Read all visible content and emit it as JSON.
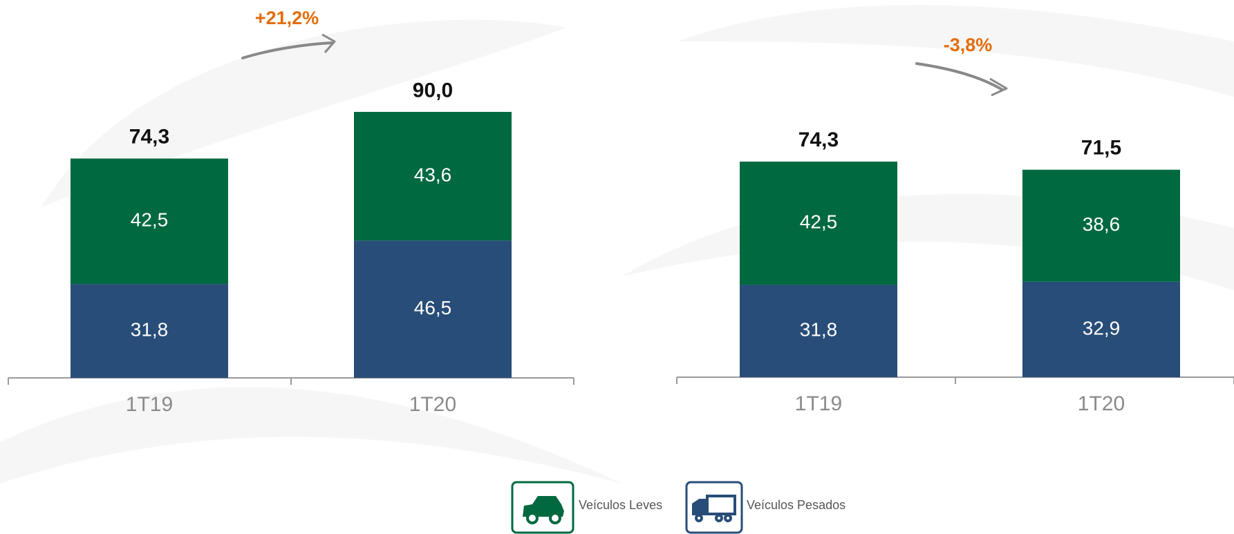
{
  "chart_data": [
    {
      "type": "stacked-bar",
      "annotation": "+21,2%",
      "categories": [
        "1T19",
        "1T20"
      ],
      "series": [
        {
          "name": "Veículos Pesados",
          "color": "#284d78",
          "values": [
            31.8,
            46.5
          ],
          "value_labels": [
            "31,8",
            "46,5"
          ]
        },
        {
          "name": "Veículos Leves",
          "color": "#006940",
          "values": [
            42.5,
            43.6
          ],
          "value_labels": [
            "42,5",
            "43,6"
          ]
        }
      ],
      "totals": [
        74.3,
        90.0
      ],
      "total_labels": [
        "74,3",
        "90,0"
      ],
      "ylim": [
        0,
        128
      ]
    },
    {
      "type": "stacked-bar",
      "annotation": "-3,8%",
      "categories": [
        "1T19",
        "1T20"
      ],
      "series": [
        {
          "color": "#284d78",
          "values": [
            31.8,
            32.9
          ],
          "value_labels": [
            "31,8",
            "32,9"
          ]
        },
        {
          "color": "#006940",
          "values": [
            42.5,
            38.6
          ],
          "value_labels": [
            "42,5",
            "38,6"
          ]
        }
      ],
      "totals": [
        74.3,
        71.5
      ],
      "total_labels": [
        "74,3",
        "71,5"
      ],
      "ylim": [
        0,
        130
      ]
    }
  ]
}
